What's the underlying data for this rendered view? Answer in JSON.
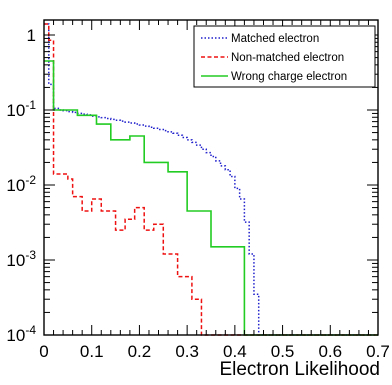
{
  "chart_data": {
    "type": "line",
    "xlabel": "Electron Likelihood",
    "ylabel": "",
    "xlim": [
      0,
      0.7
    ],
    "ylim": [
      0.0001,
      1.6
    ],
    "y_scale": "log",
    "grid": false,
    "legend_placement": "top-right",
    "x_ticks": [
      "0",
      "0.1",
      "0.2",
      "0.3",
      "0.4",
      "0.5",
      "0.6",
      "0.7"
    ],
    "y_ticks": [
      {
        "value": 1,
        "mantissa": "1",
        "exponent": ""
      },
      {
        "value": 0.1,
        "mantissa": "10",
        "exponent": "-1"
      },
      {
        "value": 0.01,
        "mantissa": "10",
        "exponent": "-2"
      },
      {
        "value": 0.001,
        "mantissa": "10",
        "exponent": "-3"
      },
      {
        "value": 0.0001,
        "mantissa": "10",
        "exponent": "-4"
      }
    ],
    "bin_edges": [
      0,
      0.01,
      0.02,
      0.03,
      0.04,
      0.05,
      0.06,
      0.07,
      0.08,
      0.09,
      0.1,
      0.11,
      0.12,
      0.13,
      0.14,
      0.15,
      0.16,
      0.17,
      0.18,
      0.19,
      0.2,
      0.21,
      0.22,
      0.23,
      0.24,
      0.25,
      0.26,
      0.27,
      0.28,
      0.29,
      0.3,
      0.31,
      0.32,
      0.33,
      0.34,
      0.35,
      0.36,
      0.37,
      0.38,
      0.39,
      0.4,
      0.41,
      0.42,
      0.43,
      0.44,
      0.45,
      0.46,
      0.47,
      0.48,
      0.49,
      0.5,
      0.51,
      0.52,
      0.53,
      0.54,
      0.55,
      0.56,
      0.57,
      0.58,
      0.59,
      0.6,
      0.61,
      0.62,
      0.63,
      0.64,
      0.65,
      0.66,
      0.67,
      0.68,
      0.69,
      0.7
    ],
    "series": [
      {
        "name": "Matched electron",
        "color": "#1f1fcc",
        "dash": "1.5,2",
        "values": [
          1.4,
          0.22,
          0.105,
          0.1,
          0.098,
          0.095,
          0.093,
          0.09,
          0.088,
          0.086,
          0.083,
          0.081,
          0.079,
          0.077,
          0.075,
          0.073,
          0.071,
          0.069,
          0.067,
          0.065,
          0.063,
          0.061,
          0.059,
          0.057,
          0.055,
          0.053,
          0.051,
          0.049,
          0.046,
          0.043,
          0.04,
          0.037,
          0.034,
          0.03,
          0.027,
          0.024,
          0.021,
          0.018,
          0.016,
          0.013,
          0.009,
          0.0065,
          0.0032,
          0.0012,
          0.00035,
          0.0001,
          0.0001,
          0.0001,
          0.0001,
          0.0001,
          0.0001,
          0.0001,
          0.0001,
          0.0001,
          0.0001,
          0.0001,
          0.0001,
          0.0001,
          0.0001,
          0.0001,
          0.0001,
          0.0001,
          0.0001,
          0.0001,
          0.0001,
          0.0001,
          0.0001,
          0.0001,
          0.0001,
          0.0001
        ]
      },
      {
        "name": "Non-matched electron",
        "color": "#ee1111",
        "dash": "4,2.5",
        "values": [
          1.4,
          0.85,
          0.014,
          0.014,
          0.014,
          0.012,
          0.007,
          0.007,
          0.0045,
          0.0045,
          0.0065,
          0.0065,
          0.0045,
          0.0045,
          0.0045,
          0.0025,
          0.0025,
          0.0035,
          0.0035,
          0.005,
          0.005,
          0.0025,
          0.0025,
          0.003,
          0.003,
          0.0012,
          0.0012,
          0.0012,
          0.0006,
          0.0006,
          0.0006,
          0.0003,
          0.0003,
          0.0001,
          0.0001,
          0.0001,
          0.0001,
          0.0001,
          0.0001,
          0.0001,
          0.0001,
          0.0001,
          0.0001,
          0.0001,
          0.0001,
          0.0001,
          0.0001,
          0.0001,
          0.0001,
          0.0001,
          0.0001,
          0.0001,
          0.0001,
          0.0001,
          0.0001,
          0.0001,
          0.0001,
          0.0001,
          0.0001,
          0.0001,
          0.0001,
          0.0001,
          0.0001,
          0.0001,
          0.0001,
          0.0001,
          0.0001,
          0.0001,
          0.0001,
          0.0001
        ]
      },
      {
        "name": "Wrong charge electron",
        "color": "#22cc22",
        "dash": "",
        "values": [
          0.45,
          0.45,
          0.1,
          0.1,
          0.1,
          0.1,
          0.1,
          0.085,
          0.085,
          0.085,
          0.085,
          0.065,
          0.065,
          0.065,
          0.04,
          0.04,
          0.04,
          0.04,
          0.045,
          0.045,
          0.045,
          0.02,
          0.02,
          0.02,
          0.02,
          0.02,
          0.015,
          0.015,
          0.015,
          0.015,
          0.0045,
          0.0045,
          0.0045,
          0.0045,
          0.0045,
          0.0015,
          0.0015,
          0.0015,
          0.0015,
          0.0015,
          0.0015,
          0.0015,
          0.0001,
          0.0001,
          0.0001,
          0.0001,
          0.0001,
          0.0001,
          0.0001,
          0.0001,
          0.0001,
          0.0001,
          0.0001,
          0.0001,
          0.0001,
          0.0001,
          0.0001,
          0.0001,
          0.0001,
          0.0001,
          0.0001,
          0.0001,
          0.0001,
          0.0001,
          0.0001,
          0.0001,
          0.0001,
          0.0001,
          0.0001,
          0.0001
        ]
      }
    ]
  }
}
